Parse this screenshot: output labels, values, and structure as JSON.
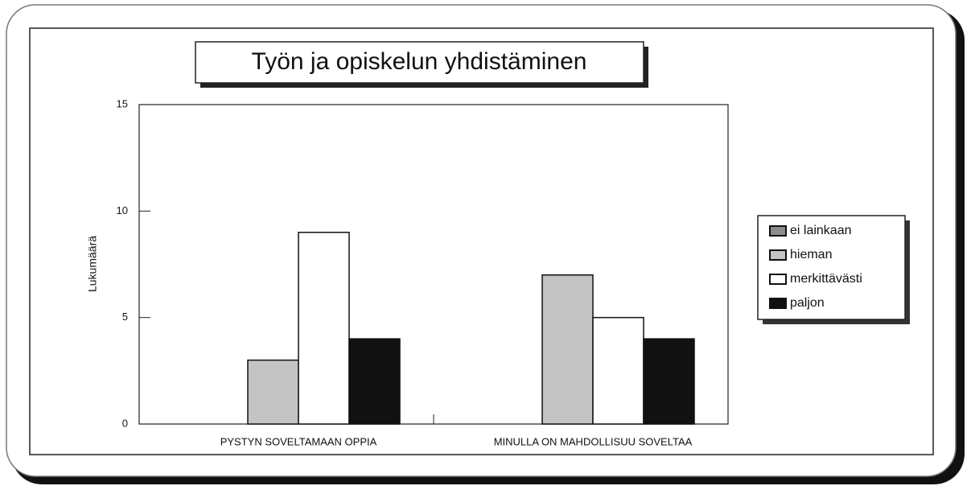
{
  "chart_data": {
    "type": "bar",
    "title": "Työn ja opiskelun yhdistäminen",
    "ylabel": "Lukumäärä",
    "categories": [
      "PYSTYN SOVELTAMAAN OPPIA",
      "MINULLA ON MAHDOLLISUU SOVELTAA"
    ],
    "series": [
      {
        "name": "ei lainkaan",
        "color": "#8c8c8c",
        "values": [
          0,
          0
        ]
      },
      {
        "name": "hieman",
        "color": "#c4c4c4",
        "values": [
          3,
          7
        ]
      },
      {
        "name": "merkittävästi",
        "color": "#ffffff",
        "values": [
          9,
          5
        ]
      },
      {
        "name": "paljon",
        "color": "#111111",
        "values": [
          4,
          4
        ]
      }
    ],
    "ylim": [
      0,
      15
    ],
    "yticks": [
      0,
      5,
      10,
      15
    ],
    "grid": false,
    "legend": "right"
  }
}
